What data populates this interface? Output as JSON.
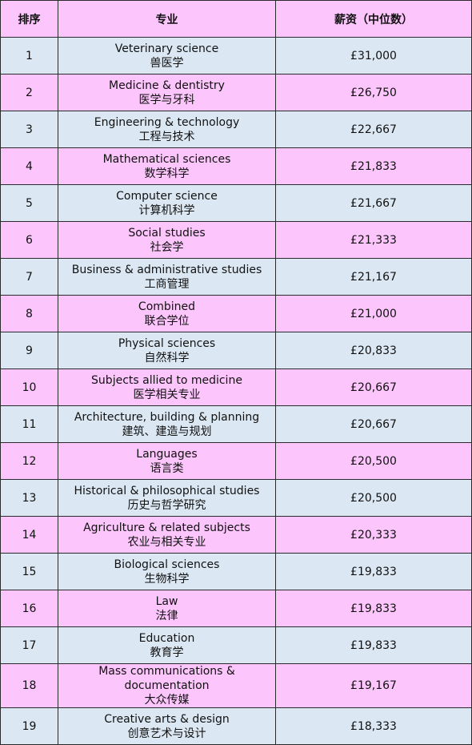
{
  "headers": {
    "rank": "排序",
    "major": "专业",
    "salary": "薪资（中位数）"
  },
  "rows": [
    {
      "rank": "1",
      "en": "Veterinary science",
      "zh": "兽医学",
      "salary": "£31,000"
    },
    {
      "rank": "2",
      "en": "Medicine & dentistry",
      "zh": "医学与牙科",
      "salary": "£26,750"
    },
    {
      "rank": "3",
      "en": "Engineering & technology",
      "zh": "工程与技术",
      "salary": "£22,667"
    },
    {
      "rank": "4",
      "en": "Mathematical sciences",
      "zh": "数学科学",
      "salary": "£21,833"
    },
    {
      "rank": "5",
      "en": "Computer science",
      "zh": "计算机科学",
      "salary": "£21,667"
    },
    {
      "rank": "6",
      "en": "Social studies",
      "zh": "社会学",
      "salary": "£21,333"
    },
    {
      "rank": "7",
      "en": "Business & administrative studies",
      "zh": "工商管理",
      "salary": "£21,167"
    },
    {
      "rank": "8",
      "en": "Combined",
      "zh": "联合学位",
      "salary": "£21,000"
    },
    {
      "rank": "9",
      "en": "Physical sciences",
      "zh": "自然科学",
      "salary": "£20,833"
    },
    {
      "rank": "10",
      "en": "Subjects allied to medicine",
      "zh": "医学相关专业",
      "salary": "£20,667"
    },
    {
      "rank": "11",
      "en": "Architecture, building & planning",
      "zh": "建筑、建造与规划",
      "salary": "£20,667"
    },
    {
      "rank": "12",
      "en": "Languages",
      "zh": "语言类",
      "salary": "£20,500"
    },
    {
      "rank": "13",
      "en": "Historical & philosophical studies",
      "zh": "历史与哲学研究",
      "salary": "£20,500"
    },
    {
      "rank": "14",
      "en": "Agriculture & related subjects",
      "zh": "农业与相关专业",
      "salary": "£20,333"
    },
    {
      "rank": "15",
      "en": "Biological sciences",
      "zh": "生物科学",
      "salary": "£19,833"
    },
    {
      "rank": "16",
      "en": "Law",
      "zh": "法律",
      "salary": "£19,833"
    },
    {
      "rank": "17",
      "en": "Education",
      "zh": "教育学",
      "salary": "£19,833"
    },
    {
      "rank": "18",
      "en": "Mass communications & documentation",
      "zh": "大众传媒",
      "salary": "£19,167"
    },
    {
      "rank": "19",
      "en": "Creative arts & design",
      "zh": "创意艺术与设计",
      "salary": "£18,333"
    }
  ],
  "colors": {
    "pink": "#fcc5fb",
    "blue": "#dbe8f3",
    "border": "#2a2a2a"
  }
}
